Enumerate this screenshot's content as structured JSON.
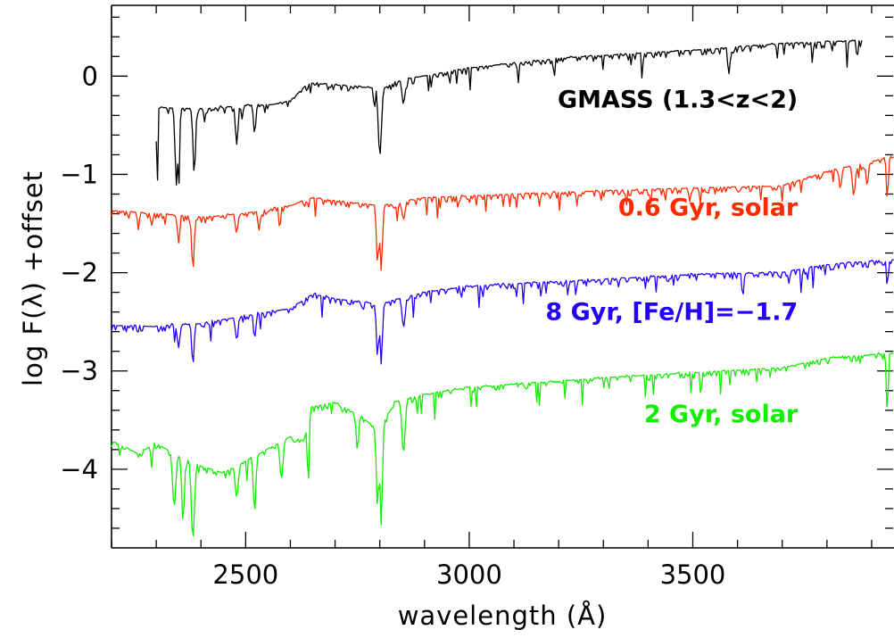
{
  "chart_data": {
    "type": "line",
    "xlabel": "wavelength (Å)",
    "ylabel": "log F(λ)  +offset",
    "xlim": [
      2200,
      3950
    ],
    "ylim": [
      -4.8,
      0.72
    ],
    "x_ticks": [
      2500,
      3000,
      3500
    ],
    "y_ticks": [
      0,
      -1,
      -2,
      -3,
      -4
    ],
    "x_minor_step": 100,
    "y_minor_step": 0.2,
    "grid": false,
    "series": [
      {
        "name": "GMASS (1.3<z<2)",
        "color": "#000000",
        "label_x": 3735,
        "label_y": -0.32,
        "x_range": [
          2300,
          3880
        ],
        "anchors": [
          [
            2300,
            -0.3
          ],
          [
            2400,
            -0.32
          ],
          [
            2500,
            -0.28
          ],
          [
            2560,
            -0.27
          ],
          [
            2600,
            -0.24
          ],
          [
            2640,
            -0.05
          ],
          [
            2780,
            -0.1
          ],
          [
            2800,
            -0.12
          ],
          [
            2850,
            -0.02
          ],
          [
            3000,
            0.1
          ],
          [
            3200,
            0.2
          ],
          [
            3500,
            0.28
          ],
          [
            3700,
            0.35
          ],
          [
            3880,
            0.38
          ]
        ],
        "dips": [
          [
            2302,
            -1.28,
            2
          ],
          [
            2345,
            -1.1,
            4
          ],
          [
            2350,
            -1.2,
            3
          ],
          [
            2385,
            -1.0,
            4
          ],
          [
            2480,
            -0.7,
            4
          ],
          [
            2520,
            -0.6,
            4
          ],
          [
            2800,
            -0.82,
            5
          ],
          [
            2853,
            -0.3,
            5
          ],
          [
            3580,
            0.0,
            3
          ]
        ]
      },
      {
        "name": "0.6 Gyr, solar",
        "color": "#ff2a00",
        "label_x": 3735,
        "label_y": -1.42,
        "x_range": [
          2200,
          3950
        ],
        "anchors": [
          [
            2200,
            -1.35
          ],
          [
            2300,
            -1.38
          ],
          [
            2400,
            -1.42
          ],
          [
            2500,
            -1.38
          ],
          [
            2600,
            -1.3
          ],
          [
            2650,
            -1.22
          ],
          [
            2700,
            -1.25
          ],
          [
            2800,
            -1.3
          ],
          [
            2900,
            -1.22
          ],
          [
            3000,
            -1.2
          ],
          [
            3300,
            -1.15
          ],
          [
            3500,
            -1.12
          ],
          [
            3700,
            -1.1
          ],
          [
            3800,
            -0.95
          ],
          [
            3950,
            -0.8
          ]
        ],
        "dips": [
          [
            2382,
            -1.95,
            4
          ],
          [
            2350,
            -1.7,
            4
          ],
          [
            2480,
            -1.6,
            4
          ],
          [
            2530,
            -1.55,
            4
          ],
          [
            2795,
            -1.92,
            4
          ],
          [
            2803,
            -1.98,
            4
          ],
          [
            2853,
            -1.45,
            5
          ],
          [
            3830,
            -1.15,
            4
          ],
          [
            3860,
            -1.2,
            5
          ],
          [
            3890,
            -1.1,
            4
          ],
          [
            3935,
            -1.28,
            3
          ]
        ]
      },
      {
        "name": "8 Gyr, [Fe/H]=−1.7",
        "color": "#2200ff",
        "label_x": 3735,
        "label_y": -2.48,
        "x_range": [
          2200,
          3950
        ],
        "anchors": [
          [
            2200,
            -2.52
          ],
          [
            2300,
            -2.53
          ],
          [
            2400,
            -2.5
          ],
          [
            2500,
            -2.42
          ],
          [
            2600,
            -2.35
          ],
          [
            2650,
            -2.2
          ],
          [
            2700,
            -2.25
          ],
          [
            2800,
            -2.3
          ],
          [
            2900,
            -2.18
          ],
          [
            3000,
            -2.12
          ],
          [
            3300,
            -2.05
          ],
          [
            3500,
            -2.0
          ],
          [
            3700,
            -1.98
          ],
          [
            3800,
            -1.9
          ],
          [
            3950,
            -1.85
          ]
        ],
        "dips": [
          [
            2382,
            -2.92,
            4
          ],
          [
            2350,
            -2.75,
            4
          ],
          [
            2480,
            -2.7,
            4
          ],
          [
            2520,
            -2.65,
            4
          ],
          [
            2795,
            -2.85,
            4
          ],
          [
            2803,
            -2.92,
            4
          ],
          [
            2853,
            -2.55,
            5
          ],
          [
            3935,
            -2.15,
            3
          ]
        ]
      },
      {
        "name": "2 Gyr, solar",
        "color": "#11ee00",
        "label_x": 3735,
        "label_y": -3.52,
        "x_range": [
          2200,
          3950
        ],
        "anchors": [
          [
            2200,
            -3.7
          ],
          [
            2260,
            -3.82
          ],
          [
            2300,
            -3.72
          ],
          [
            2350,
            -3.85
          ],
          [
            2400,
            -3.95
          ],
          [
            2450,
            -4.02
          ],
          [
            2500,
            -3.9
          ],
          [
            2560,
            -3.75
          ],
          [
            2600,
            -3.65
          ],
          [
            2630,
            -3.7
          ],
          [
            2645,
            -3.35
          ],
          [
            2700,
            -3.3
          ],
          [
            2760,
            -3.45
          ],
          [
            2800,
            -3.6
          ],
          [
            2830,
            -3.3
          ],
          [
            2900,
            -3.22
          ],
          [
            3000,
            -3.15
          ],
          [
            3300,
            -3.05
          ],
          [
            3500,
            -3.0
          ],
          [
            3700,
            -2.95
          ],
          [
            3800,
            -2.85
          ],
          [
            3950,
            -2.8
          ]
        ],
        "dips": [
          [
            2382,
            -4.7,
            5
          ],
          [
            2360,
            -4.55,
            4
          ],
          [
            2340,
            -4.4,
            5
          ],
          [
            2480,
            -4.3,
            5
          ],
          [
            2520,
            -4.45,
            4
          ],
          [
            2580,
            -4.1,
            5
          ],
          [
            2640,
            -4.15,
            3
          ],
          [
            2750,
            -3.8,
            4
          ],
          [
            2795,
            -4.4,
            4
          ],
          [
            2803,
            -4.55,
            4
          ],
          [
            2853,
            -3.85,
            5
          ],
          [
            3935,
            -3.45,
            3
          ]
        ]
      }
    ]
  }
}
